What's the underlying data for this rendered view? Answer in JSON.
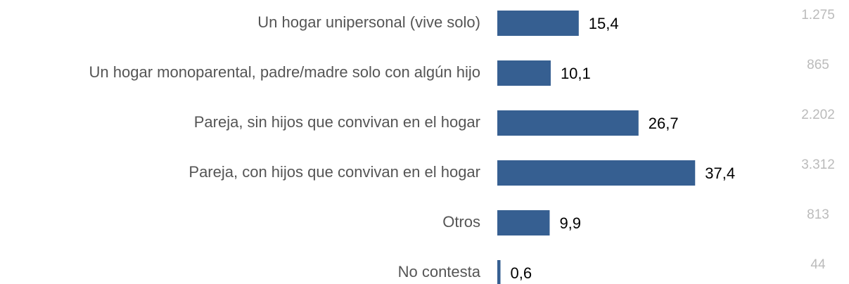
{
  "chart_data": {
    "type": "bar",
    "orientation": "horizontal",
    "categories": [
      "Un hogar unipersonal (vive solo)",
      "Un hogar monoparental, padre/madre solo con algún hijo",
      "Pareja, sin hijos que convivan en el hogar",
      "Pareja, con hijos que convivan en el hogar",
      "Otros",
      "No contesta"
    ],
    "values": [
      15.4,
      10.1,
      26.7,
      37.4,
      9.9,
      0.6
    ],
    "value_labels": [
      "15,4",
      "10,1",
      "26,7",
      "37,4",
      "9,9",
      "0,6"
    ],
    "counts": [
      "1.275",
      "865",
      "2.202",
      "3.312",
      "813",
      "44"
    ],
    "color": "#365f91"
  }
}
